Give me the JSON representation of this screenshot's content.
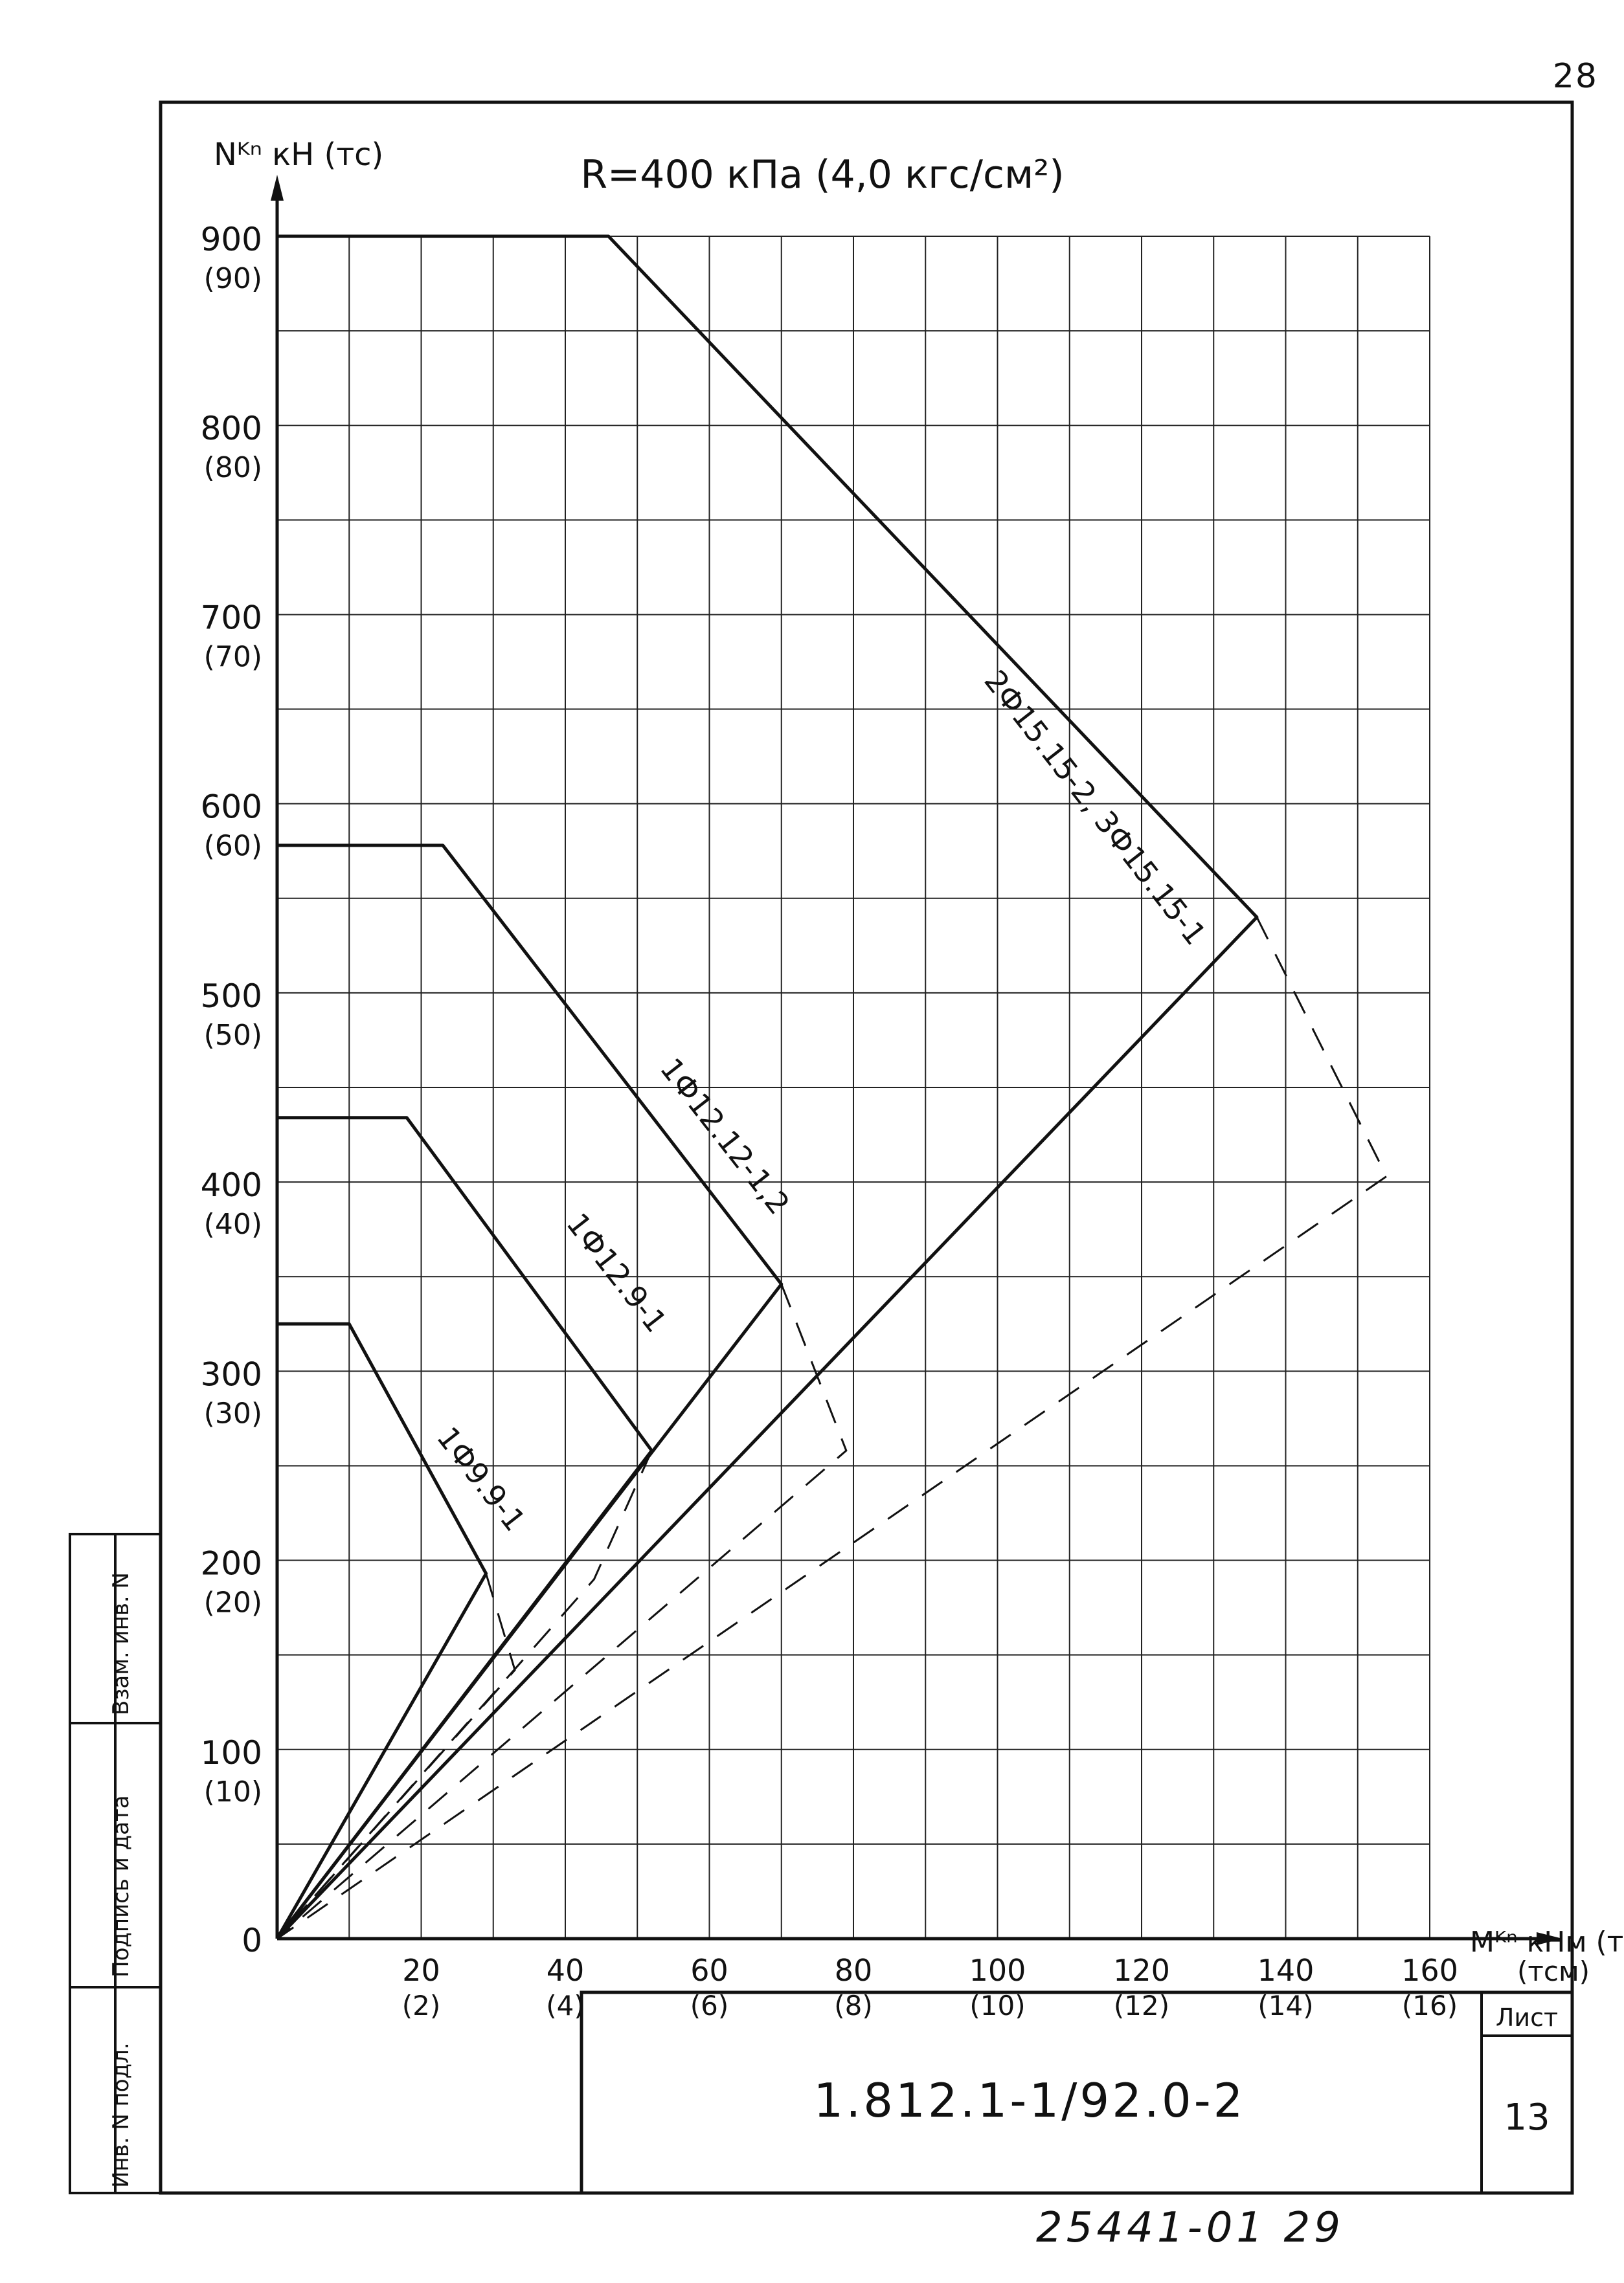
{
  "sheet_number": "28",
  "title_block": {
    "code": "1.812.1-1/92.0-2",
    "sheet_label": "Лист",
    "sheet_value": "13"
  },
  "bottom_code": "25441-01  29",
  "side_stamp": {
    "col1_top": "Взам. инв. N",
    "col1_mid": "Подпись и дата",
    "col1_bot": "Инв. N подл."
  },
  "chart_data": {
    "type": "line",
    "title": "R=400 кПа (4,0 кгс/см²)",
    "ylabel": "Nᴷⁿ кН (тс)",
    "xlabel": "Mᴷⁿ кНм (тсм)",
    "xlim": [
      0,
      160
    ],
    "ylim": [
      0,
      900
    ],
    "x_ticks": [
      {
        "value": 20,
        "label": "20",
        "sub": "(2)"
      },
      {
        "value": 40,
        "label": "40",
        "sub": "(4)"
      },
      {
        "value": 60,
        "label": "60",
        "sub": "(6)"
      },
      {
        "value": 80,
        "label": "80",
        "sub": "(8)"
      },
      {
        "value": 100,
        "label": "100",
        "sub": "(10)"
      },
      {
        "value": 120,
        "label": "120",
        "sub": "(12)"
      },
      {
        "value": 140,
        "label": "140",
        "sub": "(14)"
      },
      {
        "value": 160,
        "label": "160",
        "sub": "(16)"
      }
    ],
    "y_ticks": [
      {
        "value": 0,
        "label": "0",
        "sub": ""
      },
      {
        "value": 100,
        "label": "100",
        "sub": "(10)"
      },
      {
        "value": 200,
        "label": "200",
        "sub": "(20)"
      },
      {
        "value": 300,
        "label": "300",
        "sub": "(30)"
      },
      {
        "value": 400,
        "label": "400",
        "sub": "(40)"
      },
      {
        "value": 500,
        "label": "500",
        "sub": "(50)"
      },
      {
        "value": 600,
        "label": "600",
        "sub": "(60)"
      },
      {
        "value": 700,
        "label": "700",
        "sub": "(70)"
      },
      {
        "value": 800,
        "label": "800",
        "sub": "(80)"
      },
      {
        "value": 900,
        "label": "900",
        "sub": "(90)"
      }
    ],
    "grid_step_x": 10,
    "grid_step_y": 50,
    "grid": true,
    "series": [
      {
        "name": "1Ф9.9-1",
        "solid": [
          [
            0,
            0
          ],
          [
            29,
            193
          ],
          [
            10,
            325
          ],
          [
            0,
            325
          ]
        ],
        "dashed": [
          [
            29,
            193
          ],
          [
            33,
            142
          ],
          [
            0,
            0
          ]
        ],
        "label_at": [
          22,
          265
        ]
      },
      {
        "name": "1Ф12.9-1",
        "solid": [
          [
            0,
            0
          ],
          [
            52,
            258
          ],
          [
            18,
            434
          ],
          [
            0,
            434
          ]
        ],
        "dashed": [
          [
            52,
            258
          ],
          [
            44,
            190
          ],
          [
            0,
            0
          ]
        ],
        "label_at": [
          40,
          378
        ]
      },
      {
        "name": "1Ф12.12-1,2",
        "solid": [
          [
            0,
            0
          ],
          [
            70,
            346
          ],
          [
            23,
            578
          ],
          [
            0,
            578
          ]
        ],
        "dashed": [
          [
            70,
            346
          ],
          [
            79,
            258
          ],
          [
            0,
            0
          ]
        ],
        "label_at": [
          53,
          460
        ]
      },
      {
        "name": "2Ф15.15-2, 3Ф15.15-1",
        "solid": [
          [
            0,
            0
          ],
          [
            136,
            540
          ],
          [
            46,
            900
          ],
          [
            0,
            900
          ]
        ],
        "dashed": [
          [
            136,
            540
          ],
          [
            154,
            403
          ],
          [
            0,
            0
          ]
        ],
        "label_at": [
          98,
          665
        ]
      }
    ]
  }
}
